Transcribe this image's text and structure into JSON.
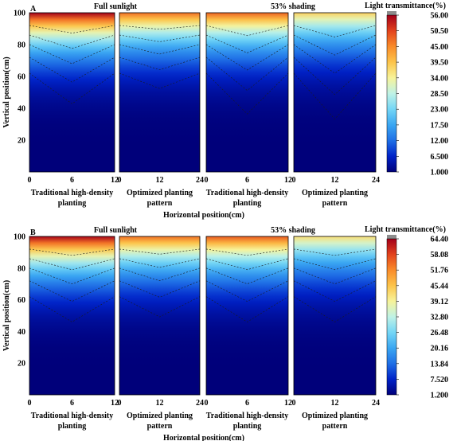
{
  "chart_data": [
    {
      "type": "heatmap",
      "panel_letter": "A",
      "ylabel": "Vertical position(cm)",
      "xlabel": "Horizontal position(cm)",
      "colorbar_title": "Light transmittance(%)",
      "colorbar_ticks": [
        "56.00",
        "50.50",
        "45.00",
        "39.50",
        "34.00",
        "28.50",
        "23.00",
        "17.50",
        "12.00",
        "6.500",
        "1.000"
      ],
      "ylim": [
        0,
        100
      ],
      "yticks": [
        "20",
        "40",
        "60",
        "80",
        "100"
      ],
      "group_titles": [
        "Full sunlight",
        "53% shading"
      ],
      "subplots": [
        {
          "group": "Full sunlight",
          "label": [
            "Traditional high-density",
            "planting"
          ],
          "xticks": [
            "0",
            "6",
            "12"
          ],
          "xmax": 12,
          "v_at_top": 56,
          "dip": 0.12
        },
        {
          "group": "Full sunlight",
          "label": [
            "Optimized planting",
            "pattern"
          ],
          "xticks": [
            "0",
            "12",
            "24"
          ],
          "xmax": 24,
          "v_at_top": 47,
          "dip": 0.06
        },
        {
          "group": "53% shading",
          "label": [
            "Traditional high-density",
            "planting"
          ],
          "xticks": [
            "0",
            "6",
            "12"
          ],
          "xmax": 12,
          "v_at_top": 48,
          "dip": 0.16
        },
        {
          "group": "53% shading",
          "label": [
            "Optimized planting",
            "pattern"
          ],
          "xticks": [
            "0",
            "12",
            "24"
          ],
          "xmax": 24,
          "v_at_top": 38,
          "dip": 0.18
        }
      ]
    },
    {
      "type": "heatmap",
      "panel_letter": "B",
      "ylabel": "Vertical position(cm)",
      "xlabel": "Horizontal position(cm)",
      "colorbar_title": "Light transmittance(%)",
      "colorbar_ticks": [
        "64.40",
        "58.08",
        "51.76",
        "45.44",
        "39.12",
        "32.80",
        "26.48",
        "20.16",
        "13.84",
        "7.520",
        "1.200"
      ],
      "ylim": [
        0,
        100
      ],
      "yticks": [
        "20",
        "40",
        "60",
        "80",
        "100"
      ],
      "group_titles": [
        "Full sunlight",
        "53% shading"
      ],
      "subplots": [
        {
          "group": "Full sunlight",
          "label": [
            "Traditional high-density",
            "planting"
          ],
          "xticks": [
            "0",
            "6",
            "12"
          ],
          "xmax": 12,
          "v_at_top": 64,
          "dip": 0.1
        },
        {
          "group": "Full sunlight",
          "label": [
            "Optimized planting",
            "pattern"
          ],
          "xticks": [
            "0",
            "12",
            "24"
          ],
          "xmax": 24,
          "v_at_top": 54,
          "dip": 0.08
        },
        {
          "group": "53% shading",
          "label": [
            "Traditional high-density",
            "planting"
          ],
          "xticks": [
            "0",
            "6",
            "12"
          ],
          "xmax": 12,
          "v_at_top": 56,
          "dip": 0.1
        },
        {
          "group": "53% shading",
          "label": [
            "Optimized planting",
            "pattern"
          ],
          "xticks": [
            "0",
            "12",
            "24"
          ],
          "xmax": 24,
          "v_at_top": 42,
          "dip": 0.1
        }
      ]
    }
  ],
  "colors": {
    "scale": [
      "#00007a",
      "#0022c8",
      "#1f6fe6",
      "#3aa6f2",
      "#74d6f6",
      "#bff2e6",
      "#f7f39a",
      "#fcc44a",
      "#f98b2a",
      "#e2421c",
      "#a3001a"
    ]
  }
}
